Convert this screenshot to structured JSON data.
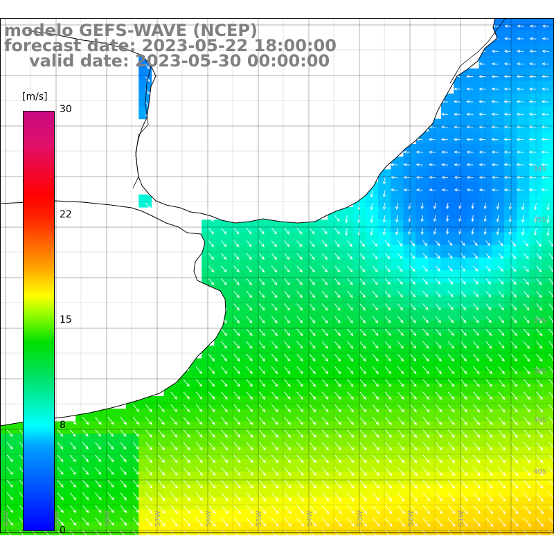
{
  "title": {
    "line1": "modelo GEFS-WAVE (NCEP)",
    "line2": "forecast date: 2023-05-22 18:00:00",
    "line3": "valid date: 2023-05-30 00:00:00"
  },
  "colorbar": {
    "unit": "[m/s]",
    "ticks": [
      "30",
      "22",
      "15",
      "8",
      "0"
    ],
    "tick_values": [
      30,
      22,
      15,
      8,
      0
    ],
    "max": 30,
    "colors": [
      "#0000ff",
      "#00a0ff",
      "#00ffff",
      "#00e060",
      "#00e000",
      "#ffff00",
      "#ffa000",
      "#ff0000",
      "#c80a82"
    ]
  },
  "grid": {
    "lat_labels": [
      "34S",
      "35S",
      "37S",
      "38S",
      "39S",
      "40S"
    ],
    "lon_labels": [
      "60W",
      "59W",
      "58W",
      "57W",
      "56W",
      "55W",
      "54W",
      "53W",
      "52W",
      "51W"
    ]
  },
  "colors": {
    "land": "#ffffff",
    "coast": "#000000",
    "gridline": "#000000",
    "vector": "#ffffff"
  }
}
